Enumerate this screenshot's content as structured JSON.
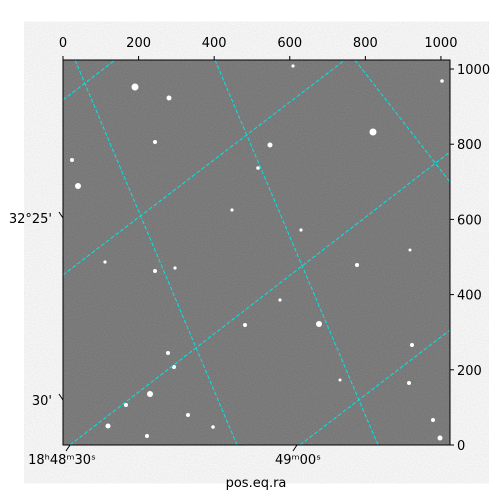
{
  "chart_data": {
    "type": "image",
    "xlabel": "pos.eq.ra",
    "xlim": [
      0,
      1024
    ],
    "ylim": [
      0,
      1024
    ],
    "xticks": [
      0,
      200,
      400,
      600,
      800,
      1000
    ],
    "yticks": [
      0,
      200,
      400,
      600,
      800,
      1000
    ],
    "ra_labels": [
      "18ʰ48ᵐ30ˢ",
      "49ᵐ00ˢ"
    ],
    "dec_labels": [
      "32°25'",
      "30'"
    ],
    "grid_color": "#00e5e5"
  }
}
